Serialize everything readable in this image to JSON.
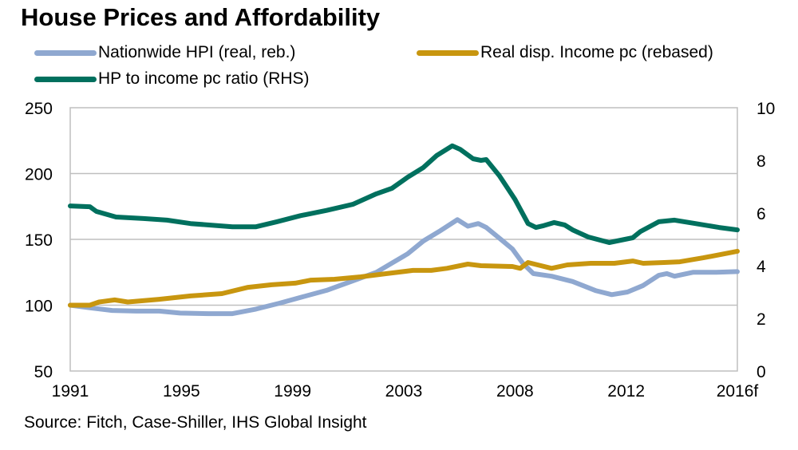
{
  "chart_data": {
    "type": "line",
    "title": "House Prices and Affordability",
    "source": "Source:  Fitch, Case-Shiller, IHS Global Insight",
    "xlabel": "",
    "ylabel": "",
    "y2label": "",
    "x_ticks": [
      "1991",
      "1995",
      "1999",
      "2003",
      "2008",
      "2012",
      "2016f"
    ],
    "x_tick_values": [
      1991.0,
      1995.25,
      1999.5,
      2003.75,
      2008.0,
      2012.25,
      2016.5
    ],
    "xlim": [
      1991.0,
      2016.5
    ],
    "ylim": [
      50,
      250
    ],
    "y_ticks": [
      "50",
      "100",
      "150",
      "200",
      "250"
    ],
    "y_tick_values": [
      50,
      100,
      150,
      200,
      250
    ],
    "y2lim": [
      0,
      10
    ],
    "y2_ticks": [
      "0",
      "2",
      "4",
      "6",
      "8",
      "10"
    ],
    "y2_tick_values": [
      0,
      2,
      4,
      6,
      8,
      10
    ],
    "grid": "horizontal",
    "legend_position": "top",
    "series": [
      {
        "name": "Nationwide HPI (real, reb.)",
        "axis": "left",
        "color": "#8FA8D0",
        "points": [
          [
            1991.0,
            100
          ],
          [
            1991.75,
            98
          ],
          [
            1992.6,
            96
          ],
          [
            1993.5,
            95.5
          ],
          [
            1994.4,
            95.5
          ],
          [
            1995.2,
            94
          ],
          [
            1996.3,
            93.6
          ],
          [
            1997.2,
            93.6
          ],
          [
            1998.1,
            97
          ],
          [
            1999.0,
            101.5
          ],
          [
            1999.9,
            106.4
          ],
          [
            2000.8,
            111.3
          ],
          [
            2001.8,
            118.5
          ],
          [
            2002.7,
            125
          ],
          [
            2003.3,
            132
          ],
          [
            2003.9,
            139
          ],
          [
            2004.5,
            148.8
          ],
          [
            2005.1,
            156
          ],
          [
            2005.8,
            165
          ],
          [
            2006.2,
            160
          ],
          [
            2006.6,
            162
          ],
          [
            2006.9,
            159
          ],
          [
            2007.4,
            151
          ],
          [
            2007.9,
            142.7
          ],
          [
            2008.3,
            131.8
          ],
          [
            2008.7,
            124
          ],
          [
            2009.4,
            122
          ],
          [
            2010.2,
            118
          ],
          [
            2011.1,
            111
          ],
          [
            2011.7,
            108
          ],
          [
            2012.3,
            110
          ],
          [
            2012.9,
            115
          ],
          [
            2013.5,
            122.7
          ],
          [
            2013.8,
            124
          ],
          [
            2014.1,
            122
          ],
          [
            2014.8,
            125
          ],
          [
            2015.7,
            125
          ],
          [
            2016.5,
            125.5
          ]
        ]
      },
      {
        "name": "Real disp. Income pc (rebased)",
        "axis": "left",
        "color": "#C8960F",
        "points": [
          [
            1991.0,
            100
          ],
          [
            1991.75,
            100
          ],
          [
            1992.1,
            102.4
          ],
          [
            1992.7,
            104
          ],
          [
            1993.2,
            102.4
          ],
          [
            1994.4,
            104.5
          ],
          [
            1995.6,
            107
          ],
          [
            1996.8,
            108.8
          ],
          [
            1997.8,
            113.6
          ],
          [
            1998.7,
            115.5
          ],
          [
            1999.6,
            116.7
          ],
          [
            2000.2,
            119
          ],
          [
            2001.1,
            119.7
          ],
          [
            2002.1,
            121.5
          ],
          [
            2003.1,
            124
          ],
          [
            2004.1,
            126.4
          ],
          [
            2004.8,
            126.4
          ],
          [
            2005.4,
            128
          ],
          [
            2006.2,
            131.2
          ],
          [
            2006.7,
            130
          ],
          [
            2007.9,
            129.4
          ],
          [
            2008.2,
            128
          ],
          [
            2008.5,
            132.4
          ],
          [
            2009.4,
            128
          ],
          [
            2010.0,
            130.6
          ],
          [
            2010.9,
            131.8
          ],
          [
            2011.8,
            131.8
          ],
          [
            2012.5,
            133.6
          ],
          [
            2012.9,
            131.8
          ],
          [
            2013.7,
            132.4
          ],
          [
            2014.3,
            133
          ],
          [
            2015.2,
            136
          ],
          [
            2016.5,
            141
          ]
        ]
      },
      {
        "name": "HP to income pc ratio (RHS)",
        "axis": "right",
        "color": "#00705E",
        "points": [
          [
            1991.0,
            6.27
          ],
          [
            1991.75,
            6.24
          ],
          [
            1992.0,
            6.06
          ],
          [
            1992.75,
            5.85
          ],
          [
            1993.8,
            5.79
          ],
          [
            1994.7,
            5.73
          ],
          [
            1995.6,
            5.6
          ],
          [
            1997.2,
            5.48
          ],
          [
            1998.1,
            5.48
          ],
          [
            1998.9,
            5.67
          ],
          [
            1999.8,
            5.9
          ],
          [
            2000.8,
            6.1
          ],
          [
            2001.8,
            6.33
          ],
          [
            2002.7,
            6.73
          ],
          [
            2003.3,
            6.94
          ],
          [
            2003.9,
            7.36
          ],
          [
            2004.5,
            7.73
          ],
          [
            2005.0,
            8.18
          ],
          [
            2005.6,
            8.55
          ],
          [
            2005.9,
            8.42
          ],
          [
            2006.4,
            8.06
          ],
          [
            2006.7,
            8.0
          ],
          [
            2006.9,
            8.03
          ],
          [
            2007.4,
            7.42
          ],
          [
            2008.0,
            6.52
          ],
          [
            2008.5,
            5.6
          ],
          [
            2008.8,
            5.45
          ],
          [
            2009.1,
            5.52
          ],
          [
            2009.5,
            5.64
          ],
          [
            2009.9,
            5.55
          ],
          [
            2010.2,
            5.36
          ],
          [
            2010.8,
            5.09
          ],
          [
            2011.6,
            4.88
          ],
          [
            2012.2,
            5.0
          ],
          [
            2012.5,
            5.06
          ],
          [
            2012.8,
            5.3
          ],
          [
            2013.5,
            5.67
          ],
          [
            2014.1,
            5.73
          ],
          [
            2014.9,
            5.6
          ],
          [
            2015.8,
            5.45
          ],
          [
            2016.5,
            5.36
          ]
        ]
      }
    ]
  },
  "legend": {
    "items": [
      {
        "label": "Nationwide HPI (real, reb.)",
        "color": "#8FA8D0"
      },
      {
        "label": "Real disp. Income pc (rebased)",
        "color": "#C8960F"
      },
      {
        "label": "HP to income pc ratio (RHS)",
        "color": "#00705E"
      }
    ]
  },
  "colors": {
    "grid": "#BFBFBF",
    "axis": "#BFBFBF"
  }
}
